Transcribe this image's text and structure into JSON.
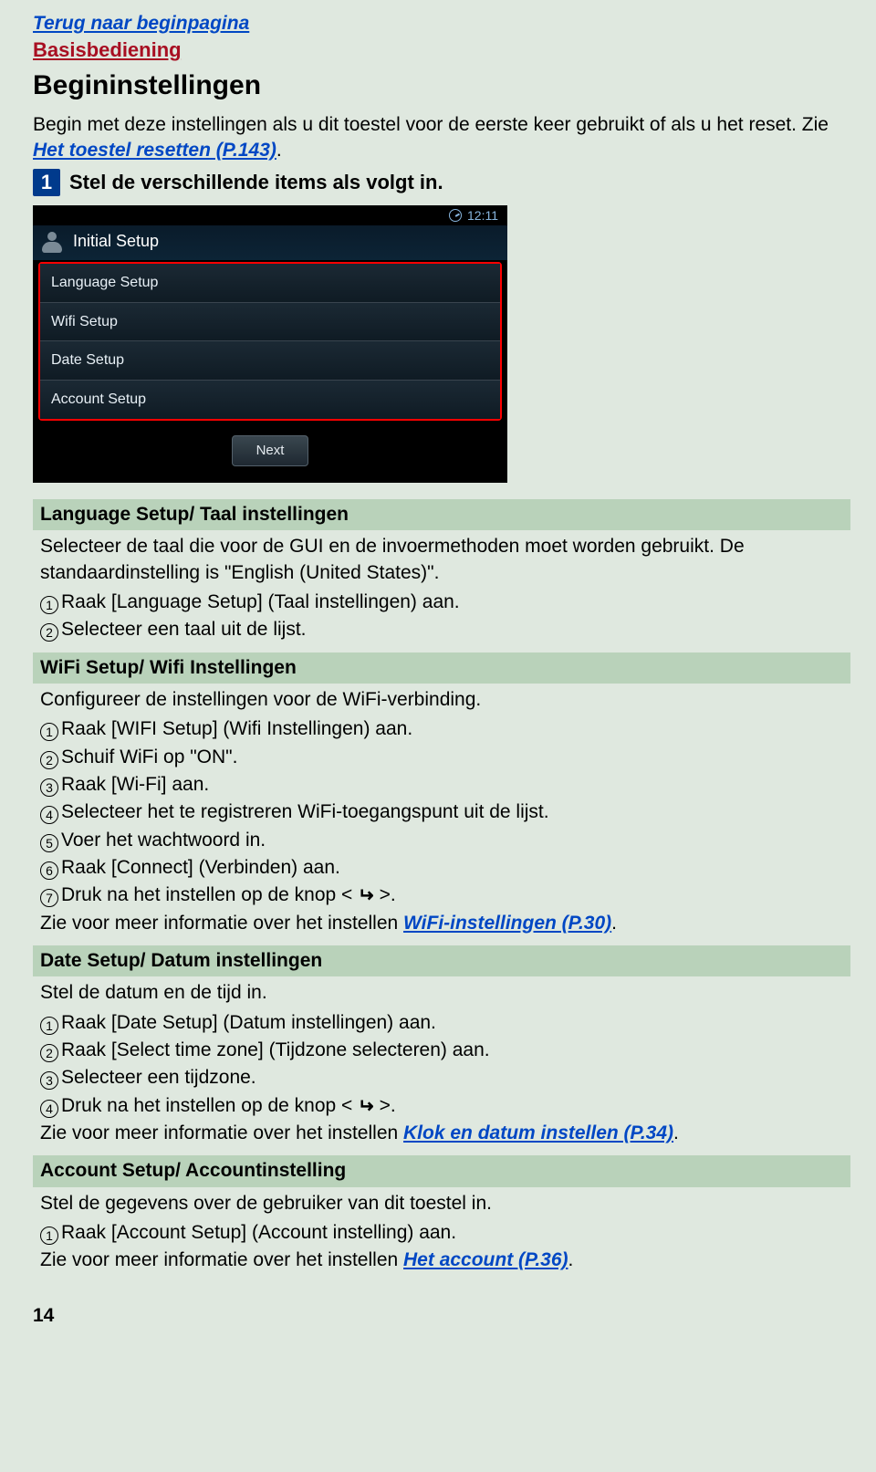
{
  "nav": {
    "back_link": "Terug naar beginpagina",
    "section": "Basisbediening"
  },
  "title": "Begininstellingen",
  "intro": {
    "text": "Begin met deze instellingen als u dit toestel voor de eerste keer gebruikt of als u het reset. Zie ",
    "link": "Het toestel resetten (P.143)",
    "suffix": "."
  },
  "step": {
    "num": "1",
    "text": "Stel de verschillende items als volgt in."
  },
  "screen": {
    "time": "12:11",
    "title": "Initial Setup",
    "items": [
      "Language Setup",
      "Wifi Setup",
      "Date Setup",
      "Account Setup"
    ],
    "next_btn": "Next"
  },
  "sections": {
    "language": {
      "head": "Language Setup/ Taal instellingen",
      "p1": "Selecteer de taal die voor de GUI en de invoermethoden moet worden gebruikt. De standaardinstelling is \"English (United States)\".",
      "l1": "Raak [Language Setup] (Taal instellingen) aan.",
      "l2": "Selecteer een taal uit de lijst."
    },
    "wifi": {
      "head": "WiFi Setup/ Wifi Instellingen",
      "p1": "Configureer de instellingen voor de WiFi-verbinding.",
      "l1": "Raak [WIFI Setup] (Wifi Instellingen) aan.",
      "l2": "Schuif WiFi op \"ON\".",
      "l3": "Raak [Wi-Fi] aan.",
      "l4": "Selecteer het te registreren WiFi-toegangspunt uit de lijst.",
      "l5": "Voer het wachtwoord in.",
      "l6": "Raak [Connect] (Verbinden) aan.",
      "l7a": "Druk na het instellen op de knop < ",
      "l7b": " >.",
      "more_prefix": "Zie voor meer informatie over het instellen ",
      "more_link": "WiFi-instellingen (P.30)",
      "more_suffix": "."
    },
    "date": {
      "head": "Date Setup/ Datum instellingen",
      "p1": "Stel de datum en de tijd in.",
      "l1": "Raak [Date Setup] (Datum instellingen) aan.",
      "l2": "Raak [Select time zone] (Tijdzone selecteren) aan.",
      "l3": "Selecteer een tijdzone.",
      "l4a": "Druk na het instellen op de knop < ",
      "l4b": " >.",
      "more_prefix": "Zie voor meer informatie over het instellen ",
      "more_link": "Klok en datum instellen (P.34)",
      "more_suffix": "."
    },
    "account": {
      "head": "Account Setup/ Accountinstelling",
      "p1": "Stel de gegevens over de gebruiker van dit toestel in.",
      "l1": "Raak [Account Setup] (Account instelling) aan.",
      "more_prefix": "Zie voor meer informatie over het instellen ",
      "more_link": "Het account (P.36)",
      "more_suffix": "."
    }
  },
  "page_num": "14",
  "glyph": {
    "back_arrow": "↵"
  }
}
